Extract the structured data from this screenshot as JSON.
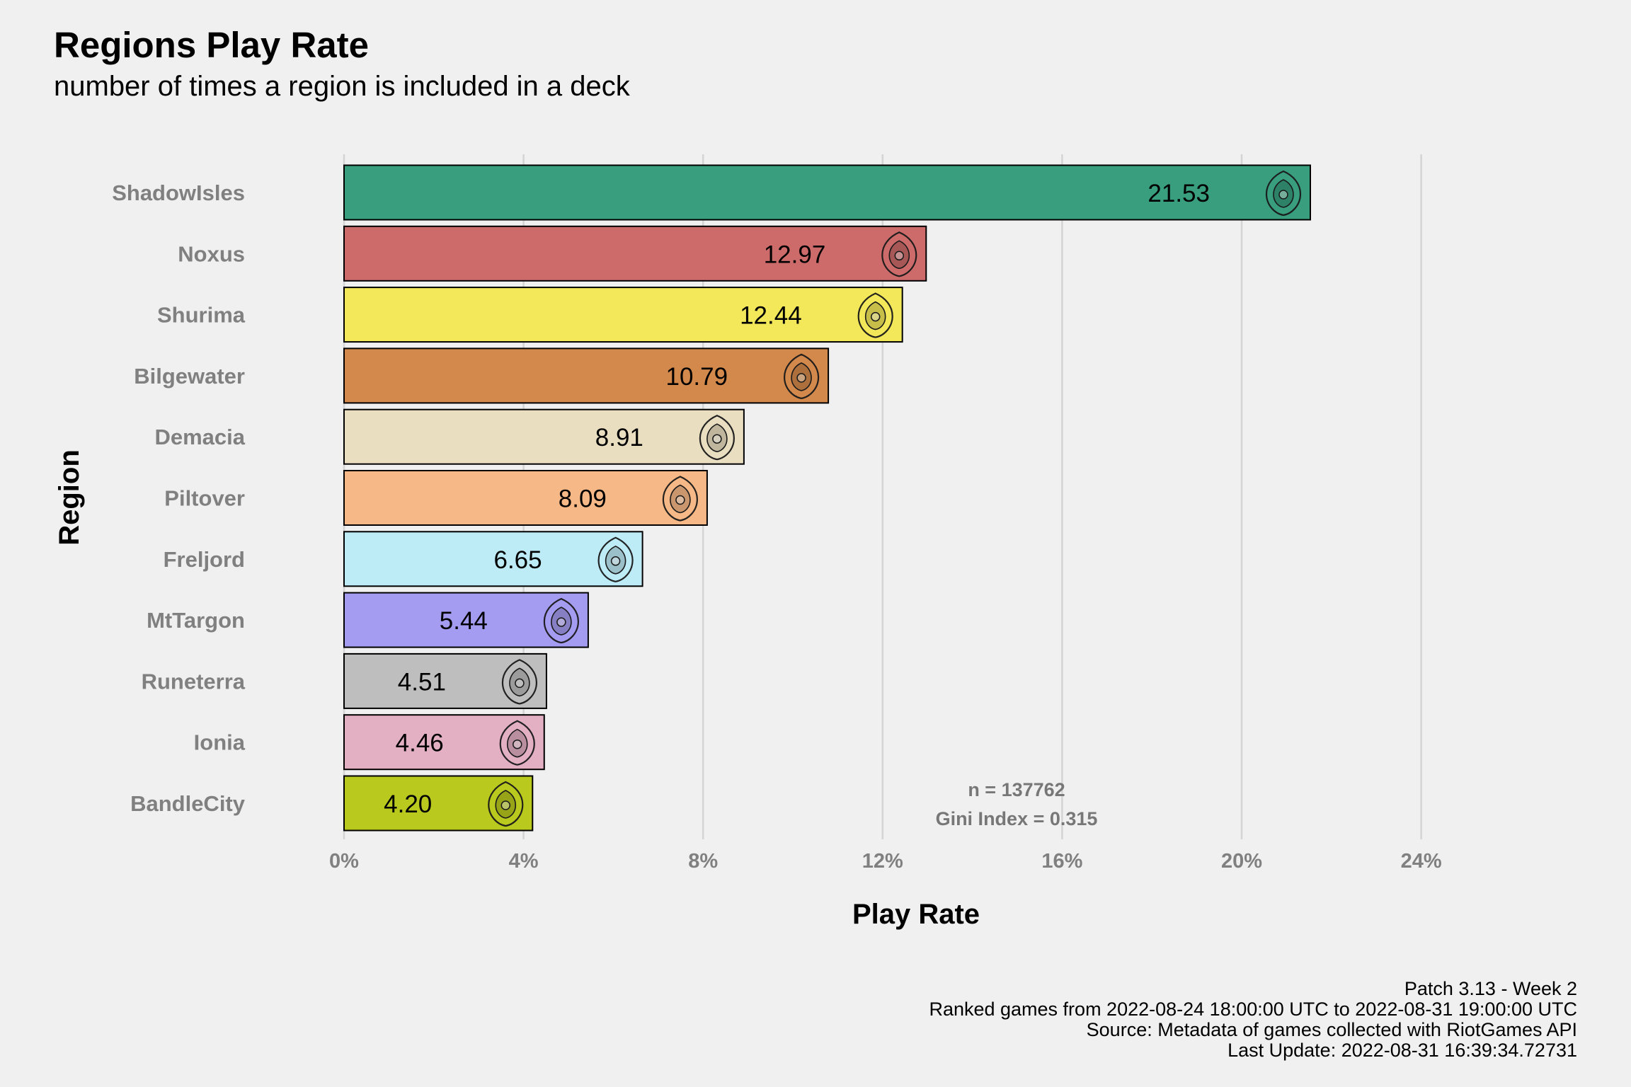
{
  "chart_data": {
    "type": "bar",
    "orientation": "horizontal",
    "title": "Regions Play Rate",
    "subtitle": "number of times a region is included in a deck",
    "xlabel": "Play Rate",
    "ylabel": "Region",
    "categories": [
      "ShadowIsles",
      "Noxus",
      "Shurima",
      "Bilgewater",
      "Demacia",
      "Piltover",
      "Freljord",
      "MtTargon",
      "Runeterra",
      "Ionia",
      "BandleCity"
    ],
    "values": [
      21.53,
      12.97,
      12.44,
      10.79,
      8.91,
      8.09,
      6.65,
      5.44,
      4.51,
      4.46,
      4.2
    ],
    "value_labels": [
      "21.53",
      "12.97",
      "12.44",
      "10.79",
      "8.91",
      "8.09",
      "6.65",
      "5.44",
      "4.51",
      "4.46",
      "4.20"
    ],
    "colors": [
      "#389e7d",
      "#cd6b6b",
      "#f2e85a",
      "#d3894b",
      "#e9dec0",
      "#f6b886",
      "#bdebf6",
      "#a49cf0",
      "#bebebe",
      "#e2afc3",
      "#b9c91e"
    ],
    "icons": [
      "shadowisles-icon",
      "noxus-icon",
      "shurima-icon",
      "bilgewater-icon",
      "demacia-icon",
      "piltover-icon",
      "freljord-icon",
      "mttargon-icon",
      "runeterra-icon",
      "ionia-icon",
      "bandlecity-icon"
    ],
    "xlim": [
      0,
      24
    ],
    "xticks": [
      0,
      4,
      8,
      12,
      16,
      20,
      24
    ],
    "xtick_labels": [
      "0%",
      "4%",
      "8%",
      "12%",
      "16%",
      "20%",
      "24%"
    ],
    "grid": "vertical major lines",
    "annotation": [
      "n = 137762",
      "Gini Index = 0.315"
    ]
  },
  "caption": [
    "Patch 3.13 - Week 2",
    "Ranked games from 2022-08-24 18:00:00 UTC to 2022-08-31 19:00:00 UTC",
    "Source: Metadata of games collected with RiotGames API",
    "Last Update: 2022-08-31 16:39:34.72731"
  ]
}
